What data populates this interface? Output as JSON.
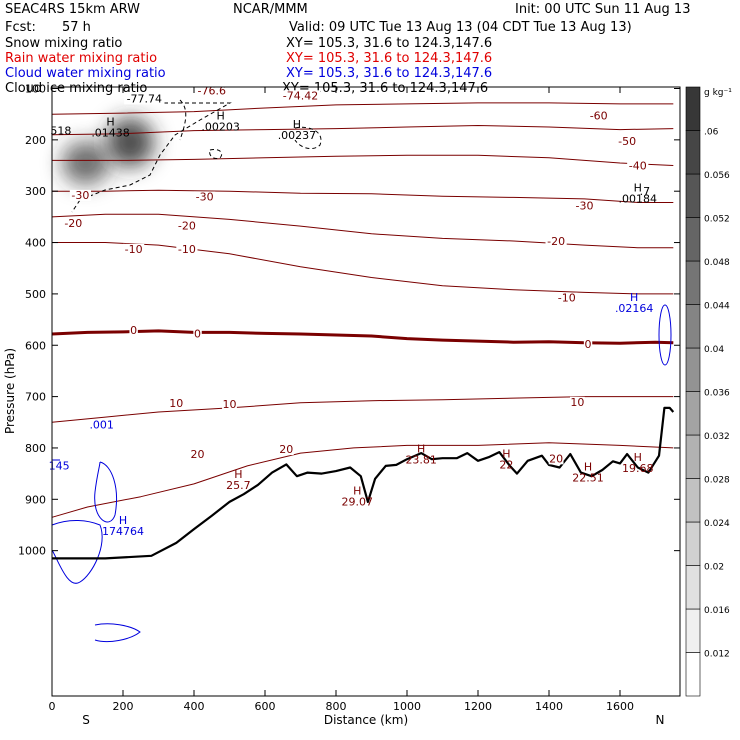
{
  "header": {
    "title": "SEAC4RS 15km ARW",
    "org": "NCAR/MMM",
    "init": "Init: 00 UTC Sun 11 Aug 13",
    "fcst_label": "Fcst:",
    "fcst_value": "57 h",
    "valid": "Valid: 09 UTC Tue 13 Aug 13 (04 CDT Tue 13 Aug 13)"
  },
  "fields": [
    {
      "name": "Snow mixing ratio",
      "xy": "XY= 105.3, 31.6 to 124.3,147.6",
      "color": "#000000"
    },
    {
      "name": "Rain water mixing ratio",
      "xy": "XY= 105.3, 31.6 to 124.3,147.6",
      "color": "#e00000"
    },
    {
      "name": "Cloud water mixing ratio",
      "xy": "XY= 105.3, 31.6 to 124.3,147.6",
      "color": "#0000dd"
    },
    {
      "name": "Cloud ice mixing ratio",
      "xy": "XY= 105.3, 31.6 to 124.3,147.6",
      "color": "#000000"
    }
  ],
  "chart_data": {
    "type": "cross-section",
    "xlabel": "Distance (km)",
    "ylabel": "Pressure (hPa)",
    "xlim": [
      0,
      1750
    ],
    "ylim": [
      1050,
      100
    ],
    "x_ticks": [
      "0",
      "200",
      "400",
      "600",
      "800",
      "1000",
      "1200",
      "1400",
      "1600"
    ],
    "y_ticks": [
      "100",
      "200",
      "300",
      "400",
      "500",
      "600",
      "700",
      "800",
      "900",
      "1000"
    ],
    "x_end_labels": {
      "left": "S",
      "right": "N"
    },
    "colorbar": {
      "unit": "g kg⁻¹",
      "levels": [
        "0.012",
        "0.016",
        "0.02",
        "0.024",
        "0.028",
        "0.032",
        "0.036",
        "0.04",
        "0.044",
        "0.048",
        "0.052",
        "0.056",
        ".06"
      ]
    },
    "temperature_contours": [
      {
        "value": 20,
        "points": [
          [
            0,
            935
          ],
          [
            100,
            915
          ],
          [
            250,
            895
          ],
          [
            400,
            870
          ],
          [
            550,
            835
          ],
          [
            700,
            810
          ],
          [
            850,
            800
          ],
          [
            1000,
            795
          ],
          [
            1200,
            795
          ],
          [
            1400,
            790
          ],
          [
            1600,
            795
          ],
          [
            1750,
            800
          ]
        ]
      },
      {
        "value": 10,
        "points": [
          [
            0,
            750
          ],
          [
            150,
            740
          ],
          [
            300,
            730
          ],
          [
            500,
            722
          ],
          [
            700,
            712
          ],
          [
            900,
            708
          ],
          [
            1100,
            706
          ],
          [
            1300,
            703
          ],
          [
            1500,
            700
          ],
          [
            1650,
            700
          ],
          [
            1750,
            700
          ]
        ]
      },
      {
        "value": 0,
        "points": [
          [
            0,
            578
          ],
          [
            100,
            575
          ],
          [
            200,
            574
          ],
          [
            300,
            572
          ],
          [
            400,
            575
          ],
          [
            500,
            575
          ],
          [
            600,
            577
          ],
          [
            700,
            578
          ],
          [
            800,
            580
          ],
          [
            900,
            582
          ],
          [
            1000,
            587
          ],
          [
            1100,
            590
          ],
          [
            1200,
            592
          ],
          [
            1300,
            594
          ],
          [
            1400,
            593
          ],
          [
            1500,
            595
          ],
          [
            1600,
            596
          ],
          [
            1700,
            594
          ],
          [
            1750,
            595
          ]
        ]
      },
      {
        "value": -10,
        "points": [
          [
            0,
            400
          ],
          [
            150,
            400
          ],
          [
            300,
            405
          ],
          [
            500,
            422
          ],
          [
            700,
            447
          ],
          [
            900,
            468
          ],
          [
            1100,
            484
          ],
          [
            1300,
            492
          ],
          [
            1500,
            497
          ],
          [
            1650,
            500
          ],
          [
            1750,
            500
          ]
        ]
      },
      {
        "value": -20,
        "points": [
          [
            0,
            350
          ],
          [
            150,
            345
          ],
          [
            300,
            345
          ],
          [
            500,
            355
          ],
          [
            700,
            368
          ],
          [
            900,
            383
          ],
          [
            1100,
            392
          ],
          [
            1300,
            397
          ],
          [
            1500,
            405
          ],
          [
            1650,
            410
          ],
          [
            1750,
            410
          ]
        ]
      },
      {
        "value": -30,
        "points": [
          [
            0,
            300
          ],
          [
            150,
            300
          ],
          [
            300,
            298
          ],
          [
            500,
            300
          ],
          [
            700,
            304
          ],
          [
            900,
            305
          ],
          [
            1100,
            310
          ],
          [
            1300,
            312
          ],
          [
            1500,
            315
          ],
          [
            1650,
            322
          ],
          [
            1750,
            322
          ]
        ]
      },
      {
        "value": -40,
        "points": [
          [
            0,
            240
          ],
          [
            200,
            240
          ],
          [
            400,
            238
          ],
          [
            600,
            235
          ],
          [
            800,
            232
          ],
          [
            1000,
            230
          ],
          [
            1200,
            230
          ],
          [
            1400,
            235
          ],
          [
            1600,
            245
          ],
          [
            1750,
            250
          ]
        ]
      },
      {
        "value": -50,
        "points": [
          [
            0,
            190
          ],
          [
            200,
            188
          ],
          [
            400,
            182
          ],
          [
            600,
            180
          ],
          [
            800,
            178
          ],
          [
            1000,
            175
          ],
          [
            1200,
            172
          ],
          [
            1400,
            175
          ],
          [
            1600,
            180
          ],
          [
            1750,
            178
          ]
        ]
      },
      {
        "value": -60,
        "points": [
          [
            0,
            150
          ],
          [
            200,
            148
          ],
          [
            400,
            145
          ],
          [
            600,
            138
          ],
          [
            800,
            132
          ],
          [
            1000,
            130
          ],
          [
            1200,
            128
          ],
          [
            1400,
            128
          ],
          [
            1600,
            130
          ],
          [
            1750,
            130
          ]
        ]
      }
    ],
    "contour_labels": [
      {
        "text": "-76.6",
        "x": 450,
        "p": 112,
        "color": "#7a0000"
      },
      {
        "text": "-77.74",
        "x": 260,
        "p": 127,
        "color": "#000000"
      },
      {
        "text": "-74.42",
        "x": 700,
        "p": 121,
        "color": "#7a0000"
      },
      {
        "text": "-60",
        "x": 1540,
        "p": 160,
        "color": "#7a0000"
      },
      {
        "text": "-50",
        "x": 1620,
        "p": 210,
        "color": "#7a0000"
      },
      {
        "text": "-40",
        "x": 1650,
        "p": 258,
        "color": "#7a0000"
      },
      {
        "text": "-30",
        "x": 80,
        "p": 315,
        "color": "#7a0000"
      },
      {
        "text": "-30",
        "x": 430,
        "p": 318,
        "color": "#7a0000"
      },
      {
        "text": "-30",
        "x": 1500,
        "p": 336,
        "color": "#7a0000"
      },
      {
        "text": "-20",
        "x": 60,
        "p": 370,
        "color": "#7a0000"
      },
      {
        "text": "-20",
        "x": 380,
        "p": 375,
        "color": "#7a0000"
      },
      {
        "text": "-20",
        "x": 1420,
        "p": 405,
        "color": "#7a0000"
      },
      {
        "text": "-10",
        "x": 230,
        "p": 420,
        "color": "#7a0000"
      },
      {
        "text": "-10",
        "x": 380,
        "p": 420,
        "color": "#7a0000"
      },
      {
        "text": "-10",
        "x": 1450,
        "p": 515,
        "color": "#7a0000"
      },
      {
        "text": "0",
        "x": 230,
        "p": 578,
        "color": "#7a0000"
      },
      {
        "text": "0",
        "x": 410,
        "p": 585,
        "color": "#7a0000"
      },
      {
        "text": "0",
        "x": 1510,
        "p": 605,
        "color": "#7a0000"
      },
      {
        "text": "10",
        "x": 350,
        "p": 720,
        "color": "#7a0000"
      },
      {
        "text": "10",
        "x": 500,
        "p": 722,
        "color": "#7a0000"
      },
      {
        "text": "10",
        "x": 1480,
        "p": 718,
        "color": "#7a0000"
      },
      {
        "text": "20",
        "x": 410,
        "p": 820,
        "color": "#7a0000"
      },
      {
        "text": "20",
        "x": 660,
        "p": 810,
        "color": "#7a0000"
      },
      {
        "text": "20",
        "x": 1420,
        "p": 828,
        "color": "#7a0000"
      }
    ],
    "extrema": [
      {
        "mark": "H",
        "value": ".01438",
        "x": 165,
        "p": 193,
        "color": "#000000"
      },
      {
        "mark": "H",
        "value": ".00203",
        "x": 475,
        "p": 182,
        "color": "#000000"
      },
      {
        "mark": "H",
        "value": ".00237",
        "x": 690,
        "p": 198,
        "color": "#000000"
      },
      {
        "mark": "H",
        "value": ".00184",
        "x": 1650,
        "p": 322,
        "color": "#000000"
      },
      {
        "mark": "H",
        "value": ".02164",
        "x": 1640,
        "p": 535,
        "color": "#0000dd"
      },
      {
        "mark": "H",
        "value": "174764",
        "x": 200,
        "p": 970,
        "color": "#0000dd"
      },
      {
        "mark": "H",
        "value": "25.7",
        "x": 525,
        "p": 880,
        "color": "#7a0000"
      },
      {
        "mark": "H",
        "value": "29.07",
        "x": 860,
        "p": 912,
        "color": "#7a0000"
      },
      {
        "mark": "H",
        "value": "23.81",
        "x": 1040,
        "p": 830,
        "color": "#7a0000"
      },
      {
        "mark": "H",
        "value": "22",
        "x": 1280,
        "p": 840,
        "color": "#7a0000"
      },
      {
        "mark": "H",
        "value": "22.51",
        "x": 1510,
        "p": 865,
        "color": "#7a0000"
      },
      {
        "mark": "H",
        "value": "19.68",
        "x": 1650,
        "p": 847,
        "color": "#7a0000"
      }
    ],
    "misc_labels": [
      {
        "text": "518",
        "x": 25,
        "p": 190,
        "color": "#000000"
      },
      {
        "text": ".7",
        "x": 1670,
        "p": 307,
        "color": "#000000"
      },
      {
        "text": ".001",
        "x": 140,
        "p": 762,
        "color": "#0000dd"
      },
      {
        "text": "145",
        "x": 20,
        "p": 842,
        "color": "#0000dd"
      }
    ],
    "terrain": [
      [
        0,
        1015
      ],
      [
        150,
        1015
      ],
      [
        280,
        1010
      ],
      [
        350,
        985
      ],
      [
        400,
        958
      ],
      [
        450,
        932
      ],
      [
        500,
        905
      ],
      [
        540,
        890
      ],
      [
        580,
        872
      ],
      [
        620,
        848
      ],
      [
        660,
        832
      ],
      [
        690,
        855
      ],
      [
        720,
        848
      ],
      [
        760,
        850
      ],
      [
        800,
        845
      ],
      [
        840,
        838
      ],
      [
        870,
        855
      ],
      [
        890,
        905
      ],
      [
        910,
        860
      ],
      [
        940,
        835
      ],
      [
        970,
        833
      ],
      [
        1000,
        822
      ],
      [
        1040,
        810
      ],
      [
        1070,
        822
      ],
      [
        1100,
        820
      ],
      [
        1140,
        820
      ],
      [
        1170,
        810
      ],
      [
        1200,
        825
      ],
      [
        1230,
        818
      ],
      [
        1260,
        808
      ],
      [
        1290,
        835
      ],
      [
        1310,
        850
      ],
      [
        1340,
        825
      ],
      [
        1380,
        815
      ],
      [
        1400,
        833
      ],
      [
        1430,
        838
      ],
      [
        1460,
        812
      ],
      [
        1490,
        848
      ],
      [
        1520,
        855
      ],
      [
        1550,
        843
      ],
      [
        1580,
        826
      ],
      [
        1600,
        830
      ],
      [
        1620,
        812
      ],
      [
        1650,
        838
      ],
      [
        1680,
        848
      ],
      [
        1710,
        815
      ],
      [
        1725,
        722
      ],
      [
        1740,
        722
      ],
      [
        1750,
        730
      ]
    ],
    "ice_blobs": [
      {
        "x": 95,
        "p": 245,
        "rx": 55,
        "rp": 70,
        "opacity": 0.7
      },
      {
        "x": 220,
        "p": 205,
        "rx": 55,
        "rp": 80,
        "opacity": 0.85
      }
    ]
  }
}
